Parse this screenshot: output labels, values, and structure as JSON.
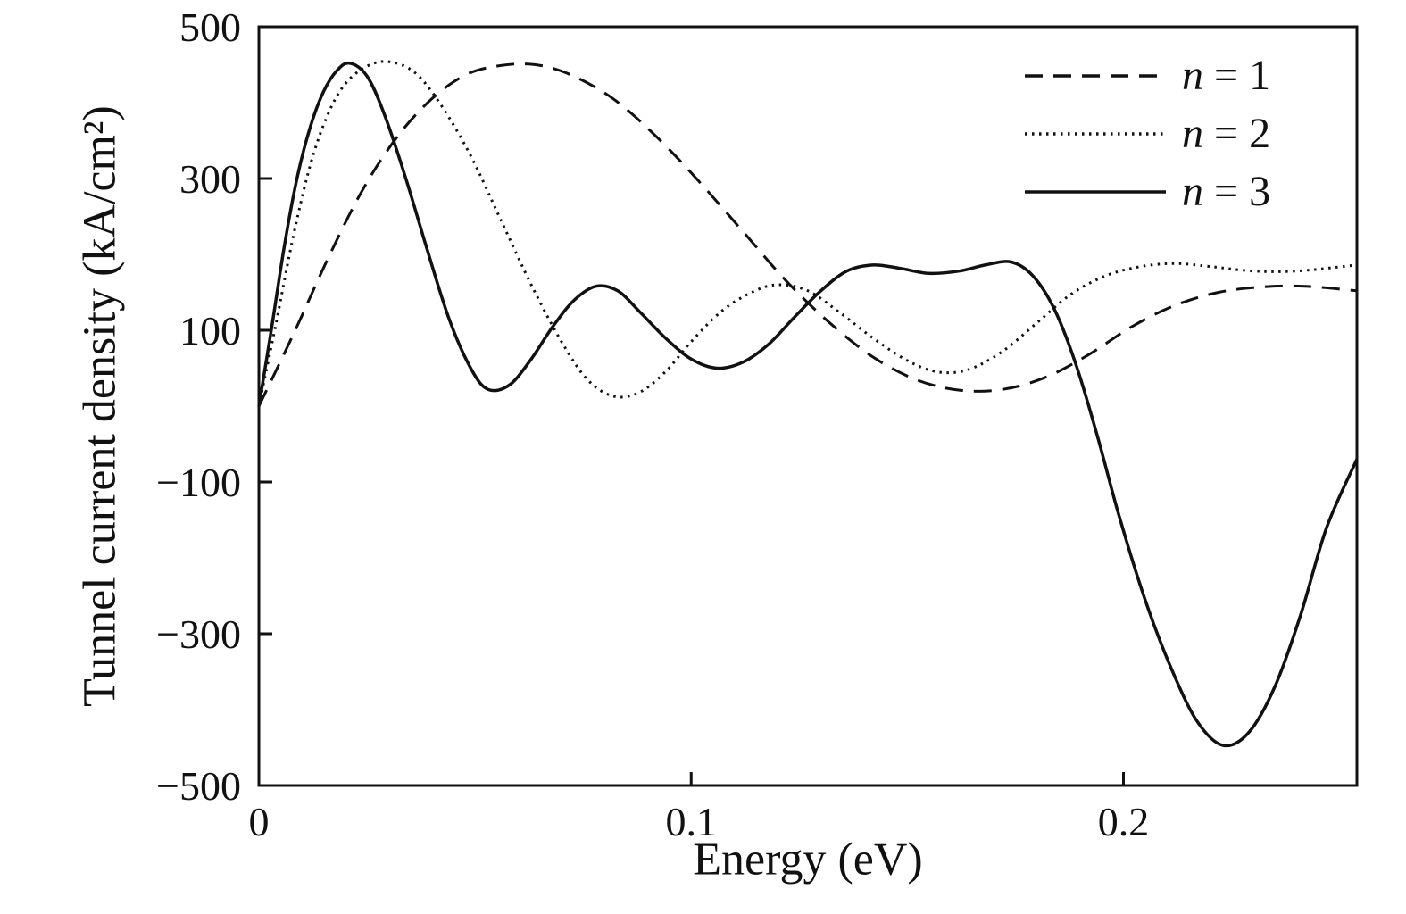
{
  "chart_data": {
    "type": "line",
    "title": "",
    "xlabel": "Energy (eV)",
    "ylabel": "Tunnel current density (kA/cm²)",
    "xlim": [
      0,
      0.254
    ],
    "ylim": [
      -500,
      500
    ],
    "xticks": [
      0,
      0.1,
      0.2
    ],
    "yticks": [
      500,
      300,
      100,
      -100,
      -300,
      -500
    ],
    "grid": false,
    "legend_position": "top-right",
    "line_color": "#111111",
    "background": "#ffffff",
    "series": [
      {
        "name": "n = 1",
        "label_var": "n",
        "label_rest": " = 1",
        "style": "dashed",
        "points": [
          [
            0,
            0
          ],
          [
            0.008,
            95
          ],
          [
            0.016,
            195
          ],
          [
            0.024,
            285
          ],
          [
            0.032,
            355
          ],
          [
            0.04,
            405
          ],
          [
            0.048,
            437
          ],
          [
            0.056,
            449
          ],
          [
            0.064,
            450
          ],
          [
            0.072,
            437
          ],
          [
            0.082,
            405
          ],
          [
            0.092,
            355
          ],
          [
            0.102,
            295
          ],
          [
            0.112,
            230
          ],
          [
            0.122,
            165
          ],
          [
            0.132,
            110
          ],
          [
            0.142,
            65
          ],
          [
            0.152,
            35
          ],
          [
            0.162,
            21
          ],
          [
            0.172,
            22
          ],
          [
            0.182,
            38
          ],
          [
            0.192,
            68
          ],
          [
            0.202,
            105
          ],
          [
            0.212,
            133
          ],
          [
            0.222,
            150
          ],
          [
            0.232,
            157
          ],
          [
            0.242,
            158
          ],
          [
            0.254,
            152
          ]
        ]
      },
      {
        "name": "n = 2",
        "label_var": "n",
        "label_rest": " = 2",
        "style": "dotted",
        "points": [
          [
            0,
            0
          ],
          [
            0.004,
            110
          ],
          [
            0.008,
            225
          ],
          [
            0.012,
            320
          ],
          [
            0.016,
            385
          ],
          [
            0.02,
            425
          ],
          [
            0.025,
            448
          ],
          [
            0.03,
            454
          ],
          [
            0.036,
            440
          ],
          [
            0.042,
            398
          ],
          [
            0.049,
            330
          ],
          [
            0.056,
            245
          ],
          [
            0.063,
            160
          ],
          [
            0.07,
            85
          ],
          [
            0.076,
            35
          ],
          [
            0.082,
            13
          ],
          [
            0.088,
            18
          ],
          [
            0.094,
            45
          ],
          [
            0.1,
            85
          ],
          [
            0.107,
            125
          ],
          [
            0.114,
            150
          ],
          [
            0.12,
            160
          ],
          [
            0.127,
            152
          ],
          [
            0.134,
            125
          ],
          [
            0.142,
            90
          ],
          [
            0.15,
            60
          ],
          [
            0.157,
            45
          ],
          [
            0.164,
            48
          ],
          [
            0.172,
            72
          ],
          [
            0.18,
            110
          ],
          [
            0.188,
            148
          ],
          [
            0.196,
            172
          ],
          [
            0.204,
            184
          ],
          [
            0.212,
            188
          ],
          [
            0.22,
            184
          ],
          [
            0.23,
            178
          ],
          [
            0.24,
            178
          ],
          [
            0.254,
            186
          ]
        ]
      },
      {
        "name": "n = 3",
        "label_var": "n",
        "label_rest": " = 3",
        "style": "solid",
        "points": [
          [
            0,
            0
          ],
          [
            0.003,
            105
          ],
          [
            0.006,
            215
          ],
          [
            0.009,
            305
          ],
          [
            0.012,
            370
          ],
          [
            0.015,
            415
          ],
          [
            0.018,
            442
          ],
          [
            0.021,
            452
          ],
          [
            0.025,
            435
          ],
          [
            0.029,
            385
          ],
          [
            0.034,
            300
          ],
          [
            0.039,
            205
          ],
          [
            0.044,
            115
          ],
          [
            0.049,
            50
          ],
          [
            0.053,
            22
          ],
          [
            0.058,
            28
          ],
          [
            0.063,
            62
          ],
          [
            0.068,
            105
          ],
          [
            0.073,
            140
          ],
          [
            0.078,
            158
          ],
          [
            0.083,
            152
          ],
          [
            0.088,
            125
          ],
          [
            0.094,
            90
          ],
          [
            0.1,
            62
          ],
          [
            0.106,
            50
          ],
          [
            0.112,
            58
          ],
          [
            0.118,
            82
          ],
          [
            0.124,
            118
          ],
          [
            0.13,
            152
          ],
          [
            0.136,
            178
          ],
          [
            0.142,
            186
          ],
          [
            0.148,
            182
          ],
          [
            0.155,
            175
          ],
          [
            0.162,
            178
          ],
          [
            0.168,
            186
          ],
          [
            0.174,
            190
          ],
          [
            0.179,
            172
          ],
          [
            0.184,
            128
          ],
          [
            0.189,
            55
          ],
          [
            0.194,
            -40
          ],
          [
            0.199,
            -145
          ],
          [
            0.205,
            -255
          ],
          [
            0.211,
            -345
          ],
          [
            0.217,
            -415
          ],
          [
            0.223,
            -447
          ],
          [
            0.229,
            -430
          ],
          [
            0.235,
            -370
          ],
          [
            0.241,
            -275
          ],
          [
            0.247,
            -160
          ],
          [
            0.254,
            -70
          ]
        ]
      }
    ]
  }
}
